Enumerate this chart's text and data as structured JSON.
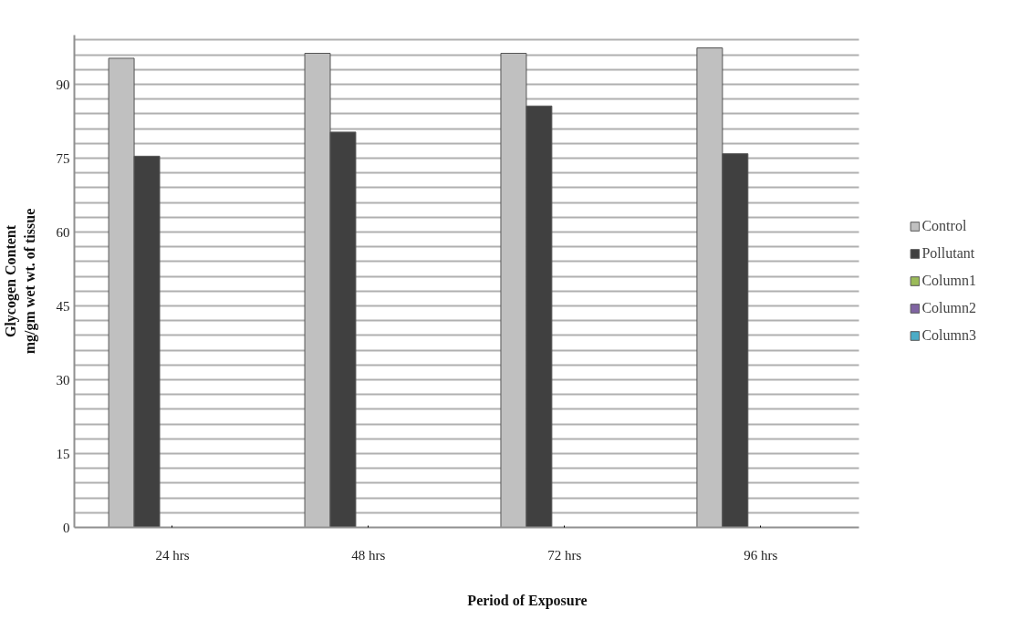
{
  "chart_data": {
    "type": "bar",
    "xlabel": "Period of Exposure",
    "ylabel": "Glycogen Content\nmg/gm wet wt. of tissue",
    "categories": [
      "24 hrs",
      "48 hrs",
      "72 hrs",
      "96 hrs"
    ],
    "series": [
      {
        "name": "Control",
        "color": "#c0c0c0",
        "values": [
          95.3,
          96.3,
          96.3,
          97.4
        ]
      },
      {
        "name": "Pollutant",
        "color": "#404040",
        "values": [
          75.4,
          80.3,
          85.6,
          75.9
        ]
      },
      {
        "name": "Column1",
        "color": "#9bbb59",
        "values": [
          null,
          null,
          null,
          null
        ]
      },
      {
        "name": "Column2",
        "color": "#8064a2",
        "values": [
          null,
          null,
          null,
          null
        ]
      },
      {
        "name": "Column3",
        "color": "#4bacc6",
        "values": [
          null,
          null,
          null,
          null
        ]
      }
    ],
    "ylim": [
      0,
      100
    ],
    "yticks": [
      0,
      {
        "value": 3,
        "label": null
      },
      {
        "value": 6,
        "label": null
      },
      {
        "value": 9,
        "label": null
      },
      {
        "value": 12,
        "label": null
      },
      15,
      {
        "value": 18,
        "label": null
      },
      {
        "value": 21,
        "label": null
      },
      {
        "value": 24,
        "label": null
      },
      {
        "value": 27,
        "label": null
      },
      30,
      {
        "value": 33,
        "label": null
      },
      {
        "value": 36,
        "label": null
      },
      {
        "value": 39,
        "label": null
      },
      {
        "value": 42,
        "label": null
      },
      45,
      {
        "value": 48,
        "label": null
      },
      {
        "value": 51,
        "label": null
      },
      {
        "value": 54,
        "label": null
      },
      {
        "value": 57,
        "label": null
      },
      60,
      {
        "value": 63,
        "label": null
      },
      {
        "value": 66,
        "label": null
      },
      {
        "value": 69,
        "label": null
      },
      {
        "value": 72,
        "label": null
      },
      75,
      {
        "value": 78,
        "label": null
      },
      {
        "value": 81,
        "label": null
      },
      {
        "value": 84,
        "label": null
      },
      {
        "value": 87,
        "label": null
      },
      90,
      {
        "value": 93,
        "label": null
      },
      {
        "value": 96,
        "label": null
      },
      {
        "value": 99,
        "label": null
      }
    ],
    "grid": "y",
    "legend": "right"
  }
}
